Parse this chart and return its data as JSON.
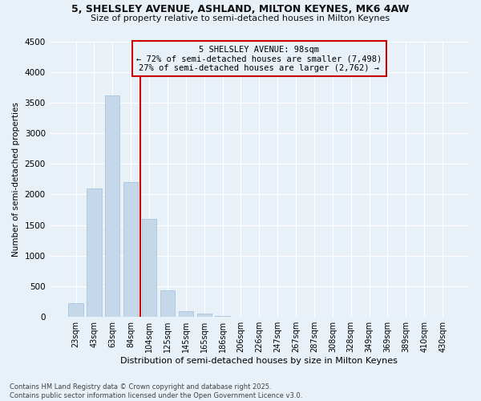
{
  "title": "5, SHELSLEY AVENUE, ASHLAND, MILTON KEYNES, MK6 4AW",
  "subtitle": "Size of property relative to semi-detached houses in Milton Keynes",
  "xlabel": "Distribution of semi-detached houses by size in Milton Keynes",
  "ylabel": "Number of semi-detached properties",
  "annotation_title": "5 SHELSLEY AVENUE: 98sqm",
  "annotation_line1": "← 72% of semi-detached houses are smaller (7,498)",
  "annotation_line2": "27% of semi-detached houses are larger (2,762) →",
  "footer1": "Contains HM Land Registry data © Crown copyright and database right 2025.",
  "footer2": "Contains public sector information licensed under the Open Government Licence v3.0.",
  "categories": [
    "23sqm",
    "43sqm",
    "63sqm",
    "84sqm",
    "104sqm",
    "125sqm",
    "145sqm",
    "165sqm",
    "186sqm",
    "206sqm",
    "226sqm",
    "247sqm",
    "267sqm",
    "287sqm",
    "308sqm",
    "328sqm",
    "349sqm",
    "369sqm",
    "389sqm",
    "410sqm",
    "430sqm"
  ],
  "values": [
    230,
    2100,
    3620,
    2200,
    1600,
    430,
    100,
    50,
    15,
    5,
    3,
    1,
    1,
    0,
    0,
    0,
    0,
    0,
    0,
    0,
    0
  ],
  "bar_color": "#c5d8ea",
  "bar_edge_color": "#a8c5df",
  "property_line_color": "#cc0000",
  "annotation_box_color": "#cc0000",
  "background_color": "#e8f0f8",
  "grid_color": "#ffffff",
  "ylim": [
    0,
    4500
  ],
  "yticks": [
    0,
    500,
    1000,
    1500,
    2000,
    2500,
    3000,
    3500,
    4000,
    4500
  ],
  "property_line_index": 3.5
}
